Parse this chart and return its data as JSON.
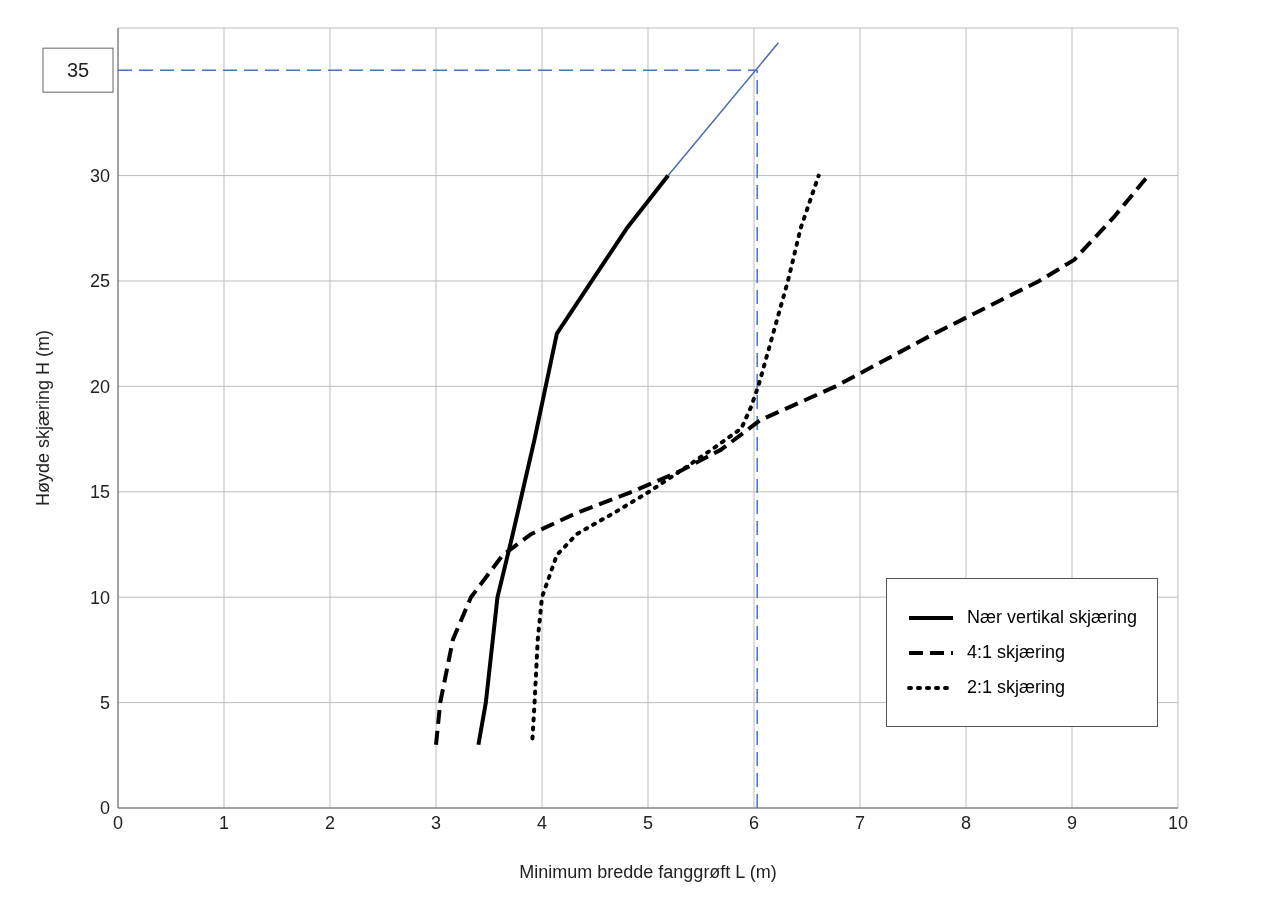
{
  "chart_data": {
    "type": "line",
    "xlabel": "Minimum bredde fanggrøft L (m)",
    "ylabel": "Høyde skjæring H (m)",
    "xlim": [
      0,
      10
    ],
    "xticks": [
      0,
      1,
      2,
      3,
      4,
      5,
      6,
      7,
      8,
      9,
      10
    ],
    "ylim": [
      0,
      37
    ],
    "yticks": [
      0,
      5,
      10,
      15,
      20,
      25,
      30
    ],
    "grid": true,
    "legend": "bottom right",
    "marker": "none",
    "series": [
      {
        "name": "Nær vertikal skjæring",
        "color": "#000000",
        "line_style": "solid",
        "x": [
          3.4,
          3.47,
          3.58,
          3.72,
          3.93,
          4.14,
          4.47,
          4.8,
          5.19
        ],
        "values": [
          3,
          5,
          10,
          12.9,
          17.5,
          22.5,
          25,
          27.5,
          30
        ]
      },
      {
        "name": "4:1 skjæring",
        "color": "#000000",
        "line_style": "dashed",
        "x": [
          3.0,
          3.04,
          3.16,
          3.33,
          3.63,
          3.9,
          4.33,
          4.85,
          5.31,
          5.69,
          6.06,
          6.77,
          7.7,
          8.69,
          9.02,
          9.39,
          9.72
        ],
        "values": [
          3,
          5,
          8,
          10,
          12,
          13,
          14,
          15,
          16,
          17,
          18.4,
          20,
          22.5,
          25,
          26,
          28,
          30
        ]
      },
      {
        "name": "2:1 skjæring",
        "color": "#000000",
        "line_style": "dotted",
        "x": [
          3.91,
          3.93,
          3.96,
          4.0,
          4.14,
          4.33,
          4.68,
          5.01,
          5.31,
          5.6,
          5.88,
          5.97,
          6.04,
          6.18,
          6.32,
          6.44,
          6.61
        ],
        "values": [
          3.3,
          5,
          8,
          10,
          12,
          13,
          14,
          15,
          16,
          17,
          18,
          19,
          20,
          22.5,
          25,
          27.5,
          30
        ]
      },
      {
        "color": "#4a6ab0",
        "line_style": "solid",
        "x": [
          5.19,
          6.23
        ],
        "values": [
          30,
          36.3
        ]
      }
    ],
    "ref_lines": [
      {
        "axis": "y",
        "value": 35,
        "label": "35",
        "color": "#4472c4",
        "line_style": "dashed"
      },
      {
        "axis": "x",
        "value": 6.03,
        "color": "#4472c4",
        "line_style": "dashed"
      }
    ]
  }
}
